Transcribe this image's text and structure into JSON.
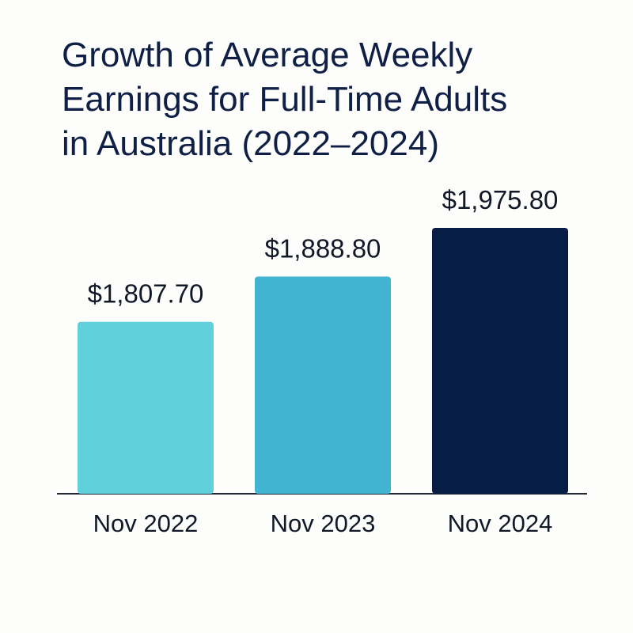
{
  "chart_data": {
    "type": "bar",
    "title_lines": [
      "Growth of Average Weekly",
      "Earnings for Full-Time Adults",
      "in Australia (2022–2024)"
    ],
    "categories": [
      "Nov 2022",
      "Nov 2023",
      "Nov 2024"
    ],
    "values": [
      1807.7,
      1888.8,
      1975.8
    ],
    "value_labels": [
      "$1,807.70",
      "$1,888.80",
      "$1,975.80"
    ],
    "colors": [
      "#5fd0dc",
      "#41b4d1",
      "#071d45"
    ],
    "xlabel": "",
    "ylabel": "",
    "ylim": [
      1500,
      2000
    ],
    "grid": false,
    "legend": "none"
  }
}
